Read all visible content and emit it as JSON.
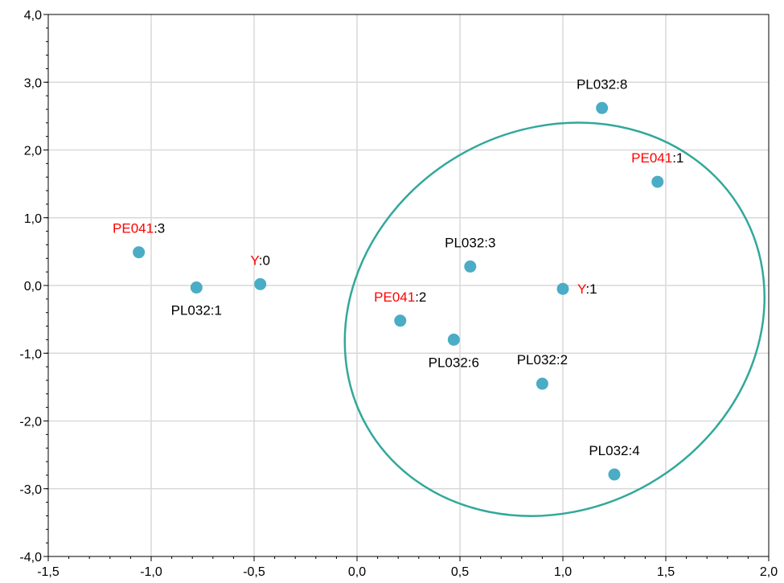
{
  "chart_data": {
    "type": "scatter",
    "title": "",
    "xlabel": "",
    "ylabel": "",
    "xlim": [
      -1.5,
      2.0
    ],
    "ylim": [
      -4.0,
      4.0
    ],
    "grid": true,
    "x_ticks": [
      "-1,5",
      "-1,0",
      "-0,5",
      "0,0",
      "0,5",
      "1,0",
      "1,5",
      "2,0"
    ],
    "y_ticks": [
      "-4,0",
      "-3,0",
      "-2,0",
      "-1,0",
      "0,0",
      "1,0",
      "2,0",
      "3,0",
      "4,0"
    ],
    "x_tick_values": [
      -1.5,
      -1.0,
      -0.5,
      0.0,
      0.5,
      1.0,
      1.5,
      2.0
    ],
    "y_tick_values": [
      -4.0,
      -3.0,
      -2.0,
      -1.0,
      0.0,
      1.0,
      2.0,
      3.0,
      4.0
    ],
    "marker_color": "#4bacc6",
    "highlight_color": "#ff0000",
    "text_color": "#000000",
    "ellipse_color": "#31a89a",
    "points": [
      {
        "x": -1.06,
        "y": 0.49,
        "prefix": "PE041",
        "suffix": ":3",
        "label_pos": "above"
      },
      {
        "x": -0.78,
        "y": -0.03,
        "prefix": "",
        "suffix": "PL032:1",
        "label_pos": "below"
      },
      {
        "x": -0.47,
        "y": 0.02,
        "prefix": "Y",
        "suffix": ":0",
        "label_pos": "above"
      },
      {
        "x": 0.21,
        "y": -0.52,
        "prefix": "PE041",
        "suffix": ":2",
        "label_pos": "above"
      },
      {
        "x": 0.47,
        "y": -0.8,
        "prefix": "",
        "suffix": "PL032:6",
        "label_pos": "below"
      },
      {
        "x": 0.55,
        "y": 0.28,
        "prefix": "",
        "suffix": "PL032:3",
        "label_pos": "above"
      },
      {
        "x": 1.0,
        "y": -0.05,
        "prefix": "Y",
        "suffix": ":1",
        "label_pos": "right"
      },
      {
        "x": 0.9,
        "y": -1.45,
        "prefix": "",
        "suffix": "PL032:2",
        "label_pos": "above"
      },
      {
        "x": 1.25,
        "y": -2.79,
        "prefix": "",
        "suffix": "PL032:4",
        "label_pos": "above"
      },
      {
        "x": 1.19,
        "y": 2.62,
        "prefix": "",
        "suffix": "PL032:8",
        "label_pos": "above"
      },
      {
        "x": 1.46,
        "y": 1.53,
        "prefix": "PE041",
        "suffix": ":1",
        "label_pos": "above"
      }
    ],
    "ellipse": {
      "cx": 0.96,
      "cy": -0.5,
      "rx": 1.05,
      "ry": 2.8,
      "angle_deg": -30
    }
  }
}
